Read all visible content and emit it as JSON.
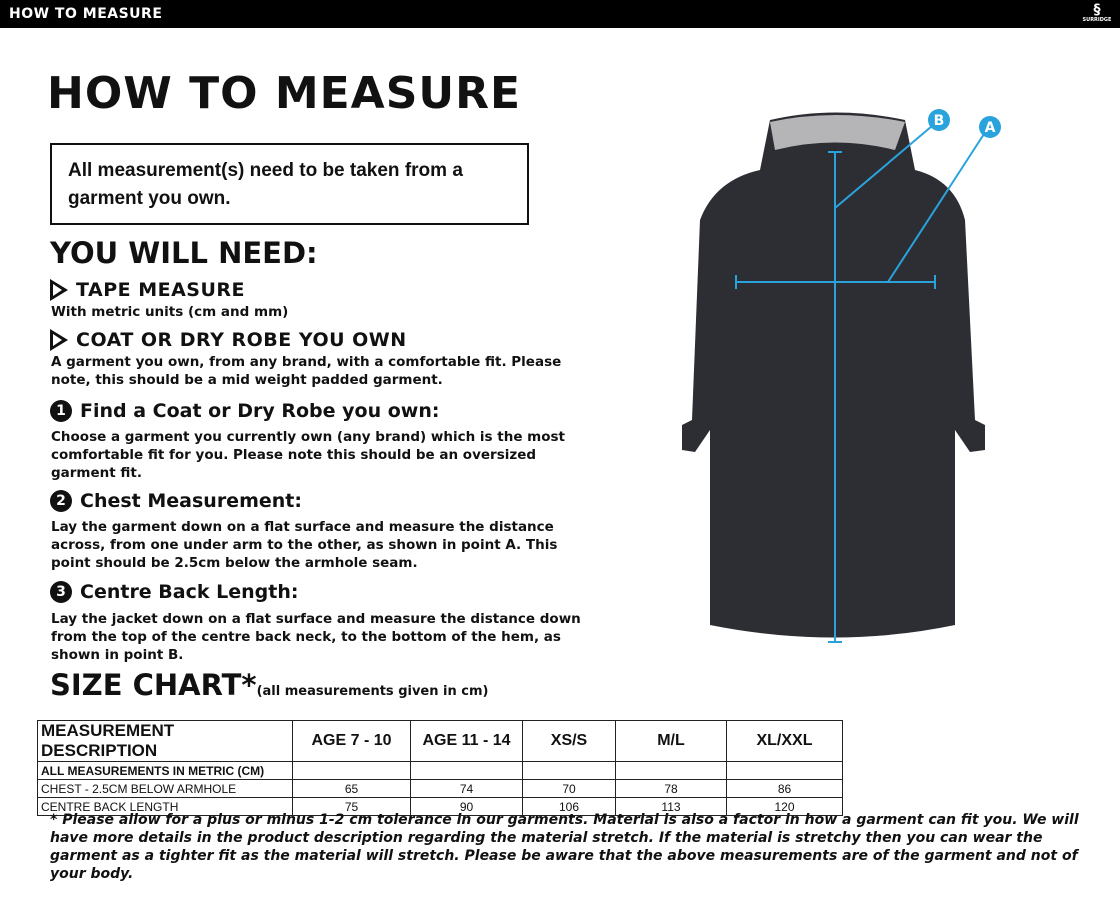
{
  "header": {
    "title": "HOW TO MEASURE",
    "logo_text": "SURRIDGE"
  },
  "title": "HOW TO MEASURE",
  "notice": "All measurement(s) need to be taken from a garment you own.",
  "you_will_need": "YOU WILL NEED:",
  "needs": [
    {
      "title": "TAPE MEASURE",
      "text": "With metric units (cm and mm)"
    },
    {
      "title": "COAT OR DRY ROBE YOU OWN",
      "text": "A garment you own, from any brand, with a comfortable fit. Please note, this should be a mid weight padded garment."
    }
  ],
  "steps": [
    {
      "n": "1",
      "title": "Find a Coat or Dry Robe you own:",
      "text": "Choose a garment you currently own (any brand) which is the most comfortable fit for you. Please note this should be an oversized garment fit."
    },
    {
      "n": "2",
      "title": "Chest Measurement:",
      "text": "Lay the garment down on a flat surface and measure the distance across, from one under arm to the other, as shown in point A. This point should be 2.5cm below the armhole seam."
    },
    {
      "n": "3",
      "title": "Centre Back Length:",
      "text": "Lay the jacket down on a flat surface and measure the distance down from the top of the centre back neck, to the bottom of the hem, as shown in point B."
    }
  ],
  "size_chart": {
    "title": "SIZE CHART*",
    "subtitle": "(all measurements given in cm)",
    "headers": [
      "MEASUREMENT DESCRIPTION",
      "AGE 7 - 10",
      "AGE 11 - 14",
      "XS/S",
      "M/L",
      "XL/XXL"
    ],
    "rows": [
      [
        "ALL MEASUREMENTS IN METRIC (CM)",
        "",
        "",
        "",
        "",
        ""
      ],
      [
        "CHEST - 2.5CM BELOW ARMHOLE",
        "65",
        "74",
        "70",
        "78",
        "86"
      ],
      [
        "CENTRE BACK LENGTH",
        "75",
        "90",
        "106",
        "113",
        "120"
      ]
    ]
  },
  "footnote": "* Please allow for a plus or minus 1-2 cm tolerance in our garments. Material is also a factor in how a garment can fit you. We will have more details in the product description regarding the material stretch.  If the material is stretchy then you can wear the garment as a tighter fit as the material will stretch.  Please be aware that the above measurements are of the garment and not of your body.",
  "diagram": {
    "label_a": "A",
    "label_b": "B",
    "accent": "#2aa3dc"
  }
}
